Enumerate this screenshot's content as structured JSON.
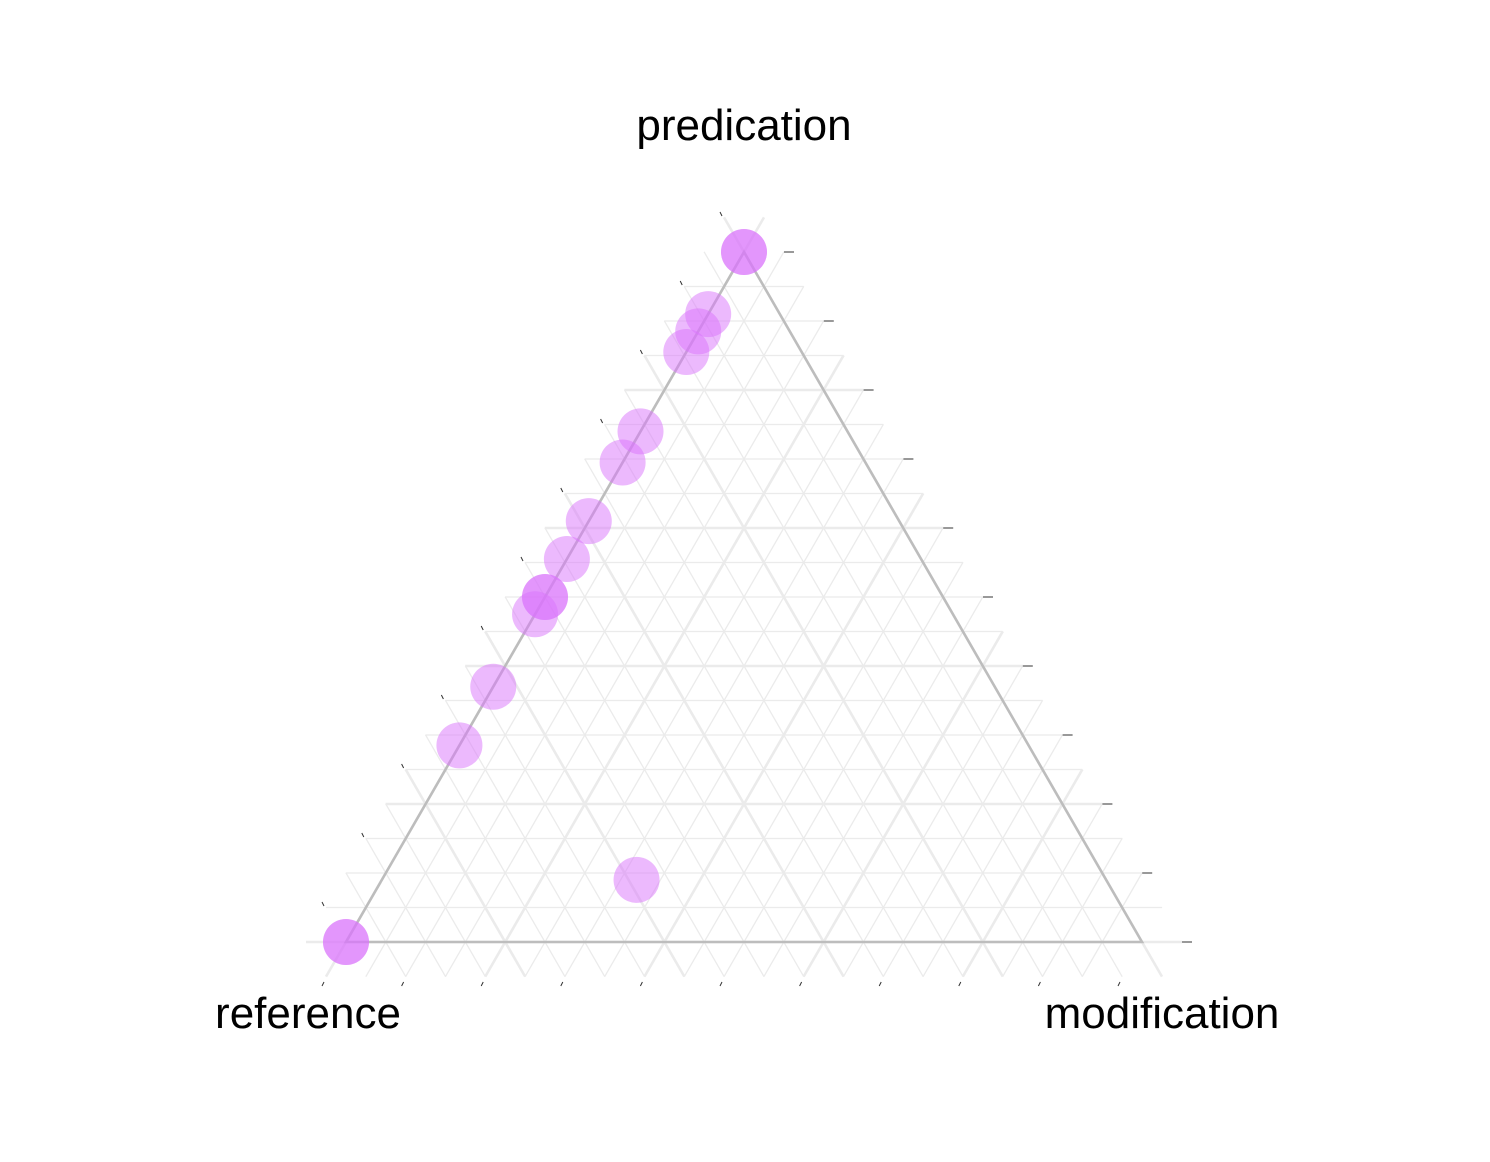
{
  "chart_data": {
    "type": "scatter",
    "subtype": "ternary",
    "axes": {
      "top": "predication",
      "left": "reference",
      "right": "modification"
    },
    "axis_range": [
      0,
      1
    ],
    "grid": true,
    "point_color": "#d973fb",
    "grid_color": "#ebebeb",
    "edge_color": "#bdbdbd",
    "points": [
      {
        "predication": 1.0,
        "reference": 0.0,
        "modification": 0.0,
        "count": 2
      },
      {
        "predication": 0.91,
        "reference": 0.09,
        "modification": 0.0,
        "count": 1
      },
      {
        "predication": 0.885,
        "reference": 0.115,
        "modification": 0.0,
        "count": 1
      },
      {
        "predication": 0.855,
        "reference": 0.145,
        "modification": 0.0,
        "count": 1
      },
      {
        "predication": 0.74,
        "reference": 0.26,
        "modification": 0.0,
        "count": 1
      },
      {
        "predication": 0.695,
        "reference": 0.305,
        "modification": 0.0,
        "count": 1
      },
      {
        "predication": 0.61,
        "reference": 0.39,
        "modification": 0.0,
        "count": 1
      },
      {
        "predication": 0.555,
        "reference": 0.445,
        "modification": 0.0,
        "count": 1
      },
      {
        "predication": 0.5,
        "reference": 0.5,
        "modification": 0.0,
        "count": 2
      },
      {
        "predication": 0.475,
        "reference": 0.525,
        "modification": 0.0,
        "count": 1
      },
      {
        "predication": 0.37,
        "reference": 0.63,
        "modification": 0.0,
        "count": 1
      },
      {
        "predication": 0.285,
        "reference": 0.715,
        "modification": 0.0,
        "count": 1
      },
      {
        "predication": 0.09,
        "reference": 0.59,
        "modification": 0.32,
        "count": 1
      },
      {
        "predication": 0.0,
        "reference": 1.0,
        "modification": 0.0,
        "count": 2
      }
    ]
  }
}
